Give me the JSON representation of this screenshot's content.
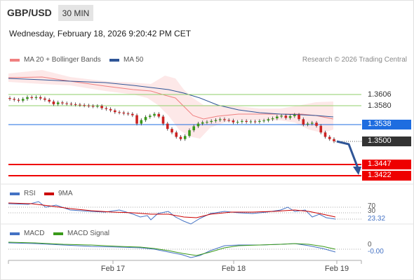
{
  "header": {
    "symbol": "GBP/USD",
    "timeframe": "30 MIN",
    "datetime": "Wednesday, February 18, 2026 9:20:42 PM CET"
  },
  "legend": {
    "ma20_label": "MA 20 + Bollinger Bands",
    "ma50_label": "MA 50",
    "credit": "Research © 2026 Trading Central",
    "ma20_color": "#f08080",
    "ma50_color": "#2f5597"
  },
  "price_levels": {
    "resistance": [
      {
        "value": "1.3606",
        "color": "#6abf3a"
      },
      {
        "value": "1.3580",
        "color": "#6abf3a"
      }
    ],
    "pivot": {
      "value": "1.3538",
      "color": "#1e6de0"
    },
    "current": {
      "value": "1.3500",
      "color": "#333333"
    },
    "support": [
      {
        "value": "1.3447",
        "color": "#ee0000"
      },
      {
        "value": "1.3422",
        "color": "#ee0000"
      }
    ]
  },
  "rsi_panel": {
    "rsi_label": "RSI",
    "ma_label": "9MA",
    "rsi_color": "#4472c4",
    "ma_color": "#cc0000",
    "level_high": "70",
    "level_low": "30",
    "current_value": "23.32"
  },
  "macd_panel": {
    "macd_label": "MACD",
    "signal_label": "MACD Signal",
    "macd_color": "#4472c4",
    "signal_color": "#3a9a1a",
    "zero_label": "0",
    "current_value": "-0.00"
  },
  "x_axis": {
    "labels": [
      "Feb 17",
      "Feb 18",
      "Feb 19"
    ]
  },
  "chart_data": {
    "type": "candlestick",
    "instrument": "GBP/USD",
    "interval": "30 MIN",
    "price_close_approx": [
      1.3596,
      1.3594,
      1.3592,
      1.3596,
      1.36,
      1.3598,
      1.36,
      1.3597,
      1.3594,
      1.359,
      1.3584,
      1.3588,
      1.3586,
      1.3585,
      1.3584,
      1.3583,
      1.3582,
      1.3581,
      1.358,
      1.3579,
      1.358,
      1.3575,
      1.3573,
      1.357,
      1.3566,
      1.3565,
      1.3563,
      1.3562,
      1.3559,
      1.354,
      1.3548,
      1.3555,
      1.3558,
      1.3562,
      1.3556,
      1.354,
      1.3528,
      1.352,
      1.351,
      1.3505,
      1.3512,
      1.3525,
      1.3534,
      1.354,
      1.3543,
      1.3544,
      1.3546,
      1.3548,
      1.355,
      1.3548,
      1.3547,
      1.3543,
      1.3544,
      1.3546,
      1.3544,
      1.3545,
      1.3544,
      1.3546,
      1.3547,
      1.355,
      1.3552,
      1.3556,
      1.3558,
      1.3553,
      1.3557,
      1.356,
      1.355,
      1.3538,
      1.354,
      1.3542,
      1.3535,
      1.352,
      1.351,
      1.3505,
      1.35
    ],
    "levels": [
      1.3606,
      1.358,
      1.3538,
      1.35,
      1.3447,
      1.3422
    ],
    "rsi_current": 23.32,
    "rsi_levels": [
      70,
      30
    ],
    "macd_current": -0.0,
    "x_labels": [
      "Feb 17",
      "Feb 18",
      "Feb 19"
    ],
    "legend": [
      "MA 20 + Bollinger Bands",
      "MA 50",
      "RSI",
      "9MA",
      "MACD",
      "MACD Signal"
    ]
  }
}
